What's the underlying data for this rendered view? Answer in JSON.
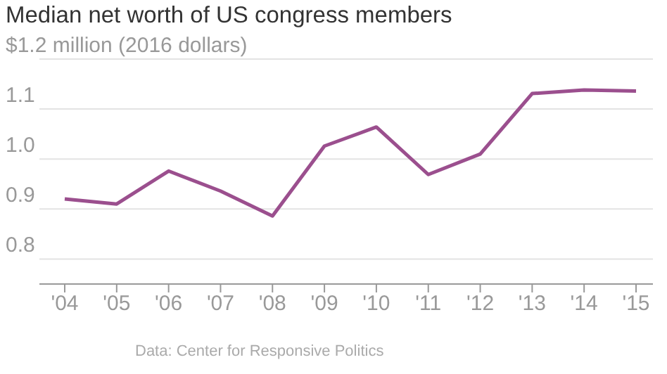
{
  "chart_data": {
    "type": "line",
    "title": "Median net worth of US congress members",
    "categories": [
      "'04",
      "'05",
      "'06",
      "'07",
      "'08",
      "'09",
      "'10",
      "'11",
      "'12",
      "'13",
      "'14",
      "'15"
    ],
    "series": [
      {
        "color": "#9b4f8e",
        "values": [
          0.92,
          0.91,
          0.976,
          0.936,
          0.886,
          1.026,
          1.064,
          0.969,
          1.01,
          1.131,
          1.138,
          1.136
        ]
      }
    ],
    "ylim": [
      0.75,
      1.2
    ],
    "yticks": [
      0.8,
      0.9,
      {
        "value": 1,
        "label": "1.0"
      },
      1.1,
      {
        "value": 1.2,
        "label": "$1.2 million (2016 dollars)"
      }
    ],
    "grid": "y",
    "marker": "none",
    "line_style": "solid",
    "annotations": [
      "Data: Center for Responsive Politics"
    ]
  }
}
